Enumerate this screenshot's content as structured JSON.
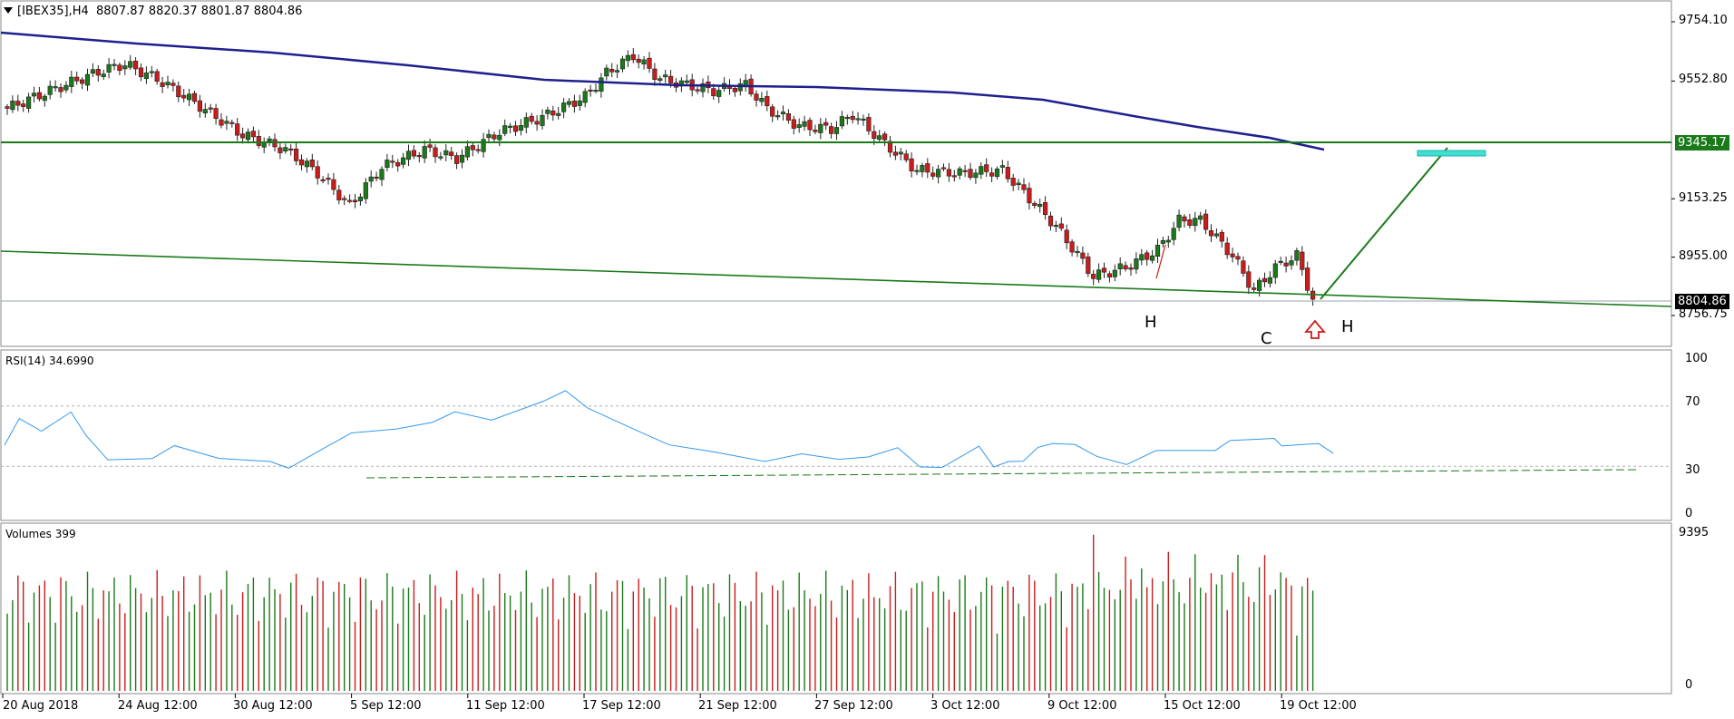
{
  "header": {
    "symbol": "[IBEX35],H4",
    "ohlc": "8807.87 8820.37 8801.87 8804.86"
  },
  "price_axis": [
    "9754.10",
    "9552.80",
    "9153.25",
    "8955.00",
    "8756.75"
  ],
  "price_marker_resistance": "9345.17",
  "price_marker_current": "8804.86",
  "annotations": {
    "left_shoulder": "H",
    "head": "C",
    "right_shoulder": "H"
  },
  "rsi": {
    "label": "RSI(14) 34.6990",
    "levels": [
      "100",
      "70",
      "30",
      "0"
    ]
  },
  "volume": {
    "label": "Volumes 399",
    "levels": [
      "9395",
      "0"
    ]
  },
  "time_axis": [
    "20 Aug 2018",
    "24 Aug 12:00",
    "30 Aug 12:00",
    "5 Sep 12:00",
    "11 Sep 12:00",
    "17 Sep 12:00",
    "21 Sep 12:00",
    "27 Sep 12:00",
    "3 Oct 12:00",
    "9 Oct 12:00",
    "15 Oct 12:00",
    "19 Oct 12:00"
  ],
  "colors": {
    "bull": "#1a7a1a",
    "bear": "#cc1b1b",
    "ma": "#1f1f8f",
    "trend": "#1a7a1a",
    "rsi_line": "#3399ee",
    "target": "#40e0d0",
    "marker_bg": "#1a7a1a",
    "current_bg": "#000000"
  }
}
